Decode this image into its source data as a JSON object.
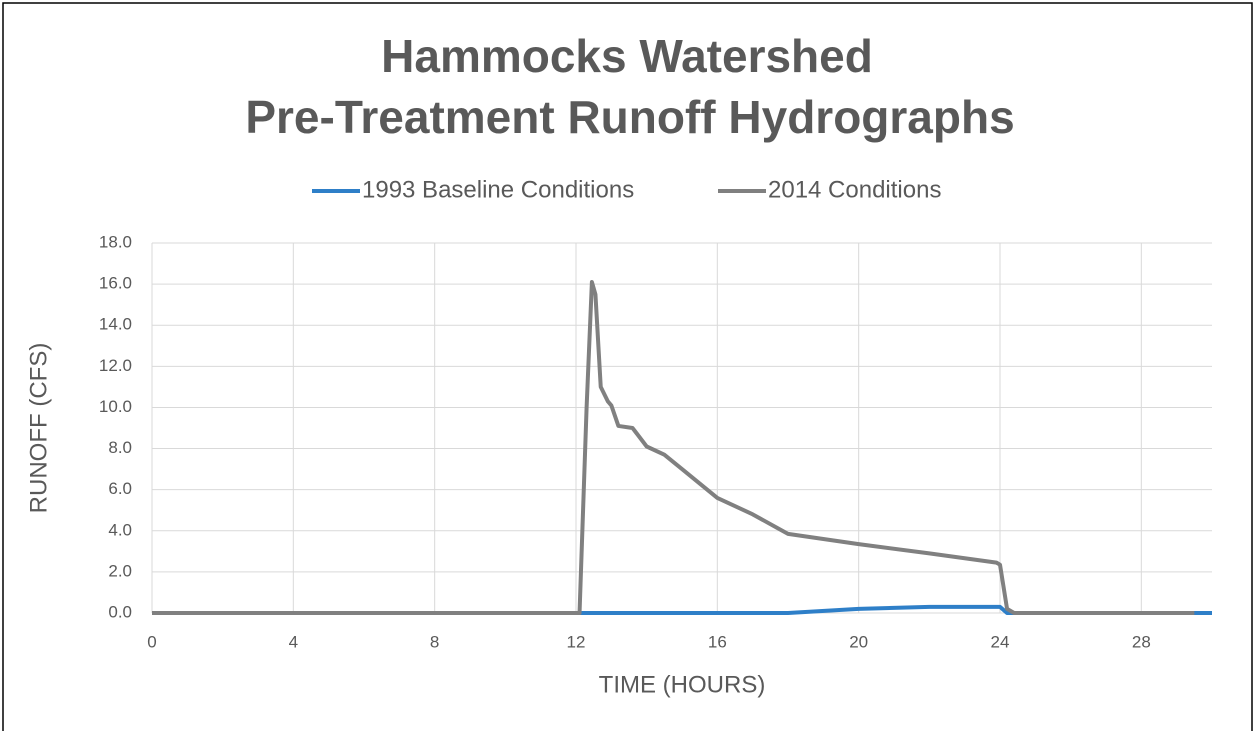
{
  "chart_data": {
    "type": "line",
    "title": [
      "Hammocks Watershed",
      "Pre-Treatment Runoff Hydrographs"
    ],
    "xlabel": "TIME (HOURS)",
    "ylabel": "RUNOFF (CFS)",
    "xlim": [
      0,
      30
    ],
    "ylim": [
      0,
      18
    ],
    "xticks": [
      0,
      4,
      8,
      12,
      16,
      20,
      24,
      28
    ],
    "yticks": [
      {
        "value": 0,
        "label": "0.0"
      },
      {
        "value": 2,
        "label": "2.0"
      },
      {
        "value": 4,
        "label": "4.0"
      },
      {
        "value": 6,
        "label": "6.0"
      },
      {
        "value": 8,
        "label": "8.0"
      },
      {
        "value": 10,
        "label": "10.0"
      },
      {
        "value": 12,
        "label": "12.0"
      },
      {
        "value": 14,
        "label": "14.0"
      },
      {
        "value": 16,
        "label": "16.0"
      },
      {
        "value": 18,
        "label": "18.0"
      }
    ],
    "grid": true,
    "legend": "top",
    "series": [
      {
        "name": "1993 Baseline Conditions",
        "color": "#2e7fc8",
        "x": [
          0,
          18.0,
          20.0,
          22.0,
          24.0,
          24.2,
          30
        ],
        "values": [
          0,
          0,
          0.2,
          0.3,
          0.3,
          0,
          0
        ]
      },
      {
        "name": "2014 Conditions",
        "color": "#808080",
        "x": [
          0,
          12.1,
          12.3,
          12.45,
          12.55,
          12.7,
          12.9,
          13.0,
          13.2,
          13.6,
          14.0,
          14.5,
          15.0,
          16.0,
          17.0,
          18.0,
          20.0,
          22.0,
          23.9,
          24.0,
          24.2,
          24.4,
          29.5
        ],
        "values": [
          0,
          0,
          10,
          16.1,
          15.5,
          11,
          10.3,
          10.1,
          9.1,
          9.0,
          8.1,
          7.7,
          7.0,
          5.6,
          4.8,
          3.85,
          3.35,
          2.9,
          2.45,
          2.35,
          0.2,
          0,
          0
        ]
      }
    ]
  }
}
